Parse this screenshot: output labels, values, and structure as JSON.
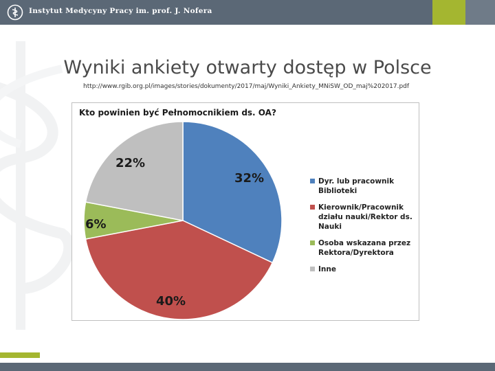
{
  "header": {
    "institute": "Instytut Medycyny Pracy im. prof. J. Nofera",
    "logo_icon": "caduceus-logo"
  },
  "slide": {
    "title": "Wyniki ankiety otwarty dostęp w Polsce",
    "url": "http://www.rgib.org.pl/images/stories/dokumenty/2017/maj/Wyniki_Ankiety_MNiSW_OD_maj%202017.pdf"
  },
  "colors": {
    "bar": "#5b6876",
    "accent": "#a4b630",
    "blue": "#4f81bd",
    "red": "#c0504d",
    "green": "#9bbb59",
    "gray": "#bfbfbf"
  },
  "chart_data": {
    "type": "pie",
    "title": "Kto powinien być Pełnomocnikiem ds. OA?",
    "legend_position": "right",
    "slices": [
      {
        "label": "Dyr. lub pracownik\nBiblioteki",
        "value": 32,
        "display": "32%",
        "color": "#4f81bd"
      },
      {
        "label": "Kierownik/Pracownik\ndziału nauki/Rektor ds.\nNauki",
        "value": 40,
        "display": "40%",
        "color": "#c0504d"
      },
      {
        "label": "Osoba wskazana przez\nRektora/Dyrektora",
        "value": 6,
        "display": "6%",
        "color": "#9bbb59"
      },
      {
        "label": "Inne",
        "value": 22,
        "display": "22%",
        "color": "#bfbfbf"
      }
    ]
  }
}
